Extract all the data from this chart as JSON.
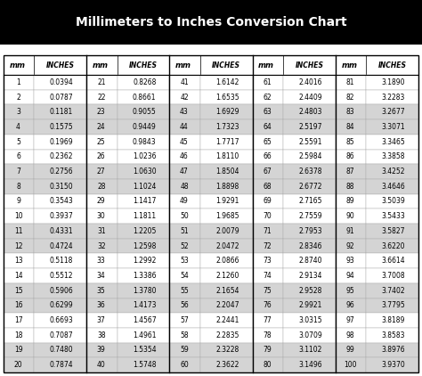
{
  "title": "Millimeters to Inches Conversion Chart",
  "title_bg": "#000000",
  "title_color": "#ffffff",
  "rows": [
    [
      1,
      "0.0394",
      21,
      "0.8268",
      41,
      "1.6142",
      61,
      "2.4016",
      81,
      "3.1890"
    ],
    [
      2,
      "0.0787",
      22,
      "0.8661",
      42,
      "1.6535",
      62,
      "2.4409",
      82,
      "3.2283"
    ],
    [
      3,
      "0.1181",
      23,
      "0.9055",
      43,
      "1.6929",
      63,
      "2.4803",
      83,
      "3.2677"
    ],
    [
      4,
      "0.1575",
      24,
      "0.9449",
      44,
      "1.7323",
      64,
      "2.5197",
      84,
      "3.3071"
    ],
    [
      5,
      "0.1969",
      25,
      "0.9843",
      45,
      "1.7717",
      65,
      "2.5591",
      85,
      "3.3465"
    ],
    [
      6,
      "0.2362",
      26,
      "1.0236",
      46,
      "1.8110",
      66,
      "2.5984",
      86,
      "3.3858"
    ],
    [
      7,
      "0.2756",
      27,
      "1.0630",
      47,
      "1.8504",
      67,
      "2.6378",
      87,
      "3.4252"
    ],
    [
      8,
      "0.3150",
      28,
      "1.1024",
      48,
      "1.8898",
      68,
      "2.6772",
      88,
      "3.4646"
    ],
    [
      9,
      "0.3543",
      29,
      "1.1417",
      49,
      "1.9291",
      69,
      "2.7165",
      89,
      "3.5039"
    ],
    [
      10,
      "0.3937",
      30,
      "1.1811",
      50,
      "1.9685",
      70,
      "2.7559",
      90,
      "3.5433"
    ],
    [
      11,
      "0.4331",
      31,
      "1.2205",
      51,
      "2.0079",
      71,
      "2.7953",
      91,
      "3.5827"
    ],
    [
      12,
      "0.4724",
      32,
      "1.2598",
      52,
      "2.0472",
      72,
      "2.8346",
      92,
      "3.6220"
    ],
    [
      13,
      "0.5118",
      33,
      "1.2992",
      53,
      "2.0866",
      73,
      "2.8740",
      93,
      "3.6614"
    ],
    [
      14,
      "0.5512",
      34,
      "1.3386",
      54,
      "2.1260",
      74,
      "2.9134",
      94,
      "3.7008"
    ],
    [
      15,
      "0.5906",
      35,
      "1.3780",
      55,
      "2.1654",
      75,
      "2.9528",
      95,
      "3.7402"
    ],
    [
      16,
      "0.6299",
      36,
      "1.4173",
      56,
      "2.2047",
      76,
      "2.9921",
      96,
      "3.7795"
    ],
    [
      17,
      "0.6693",
      37,
      "1.4567",
      57,
      "2.2441",
      77,
      "3.0315",
      97,
      "3.8189"
    ],
    [
      18,
      "0.7087",
      38,
      "1.4961",
      58,
      "2.2835",
      78,
      "3.0709",
      98,
      "3.8583"
    ],
    [
      19,
      "0.7480",
      39,
      "1.5354",
      59,
      "2.3228",
      79,
      "3.1102",
      99,
      "3.8976"
    ],
    [
      20,
      "0.7874",
      40,
      "1.5748",
      60,
      "2.3622",
      80,
      "3.1496",
      100,
      "3.9370"
    ]
  ],
  "row_colors": [
    "#ffffff",
    "#ffffff",
    "#d4d4d4",
    "#d4d4d4",
    "#ffffff",
    "#ffffff",
    "#d4d4d4",
    "#d4d4d4",
    "#ffffff",
    "#ffffff",
    "#d4d4d4",
    "#d4d4d4",
    "#ffffff",
    "#ffffff",
    "#d4d4d4",
    "#d4d4d4",
    "#ffffff",
    "#ffffff",
    "#d4d4d4",
    "#d4d4d4"
  ],
  "bg_color": "#ffffff",
  "border_color": "#000000"
}
